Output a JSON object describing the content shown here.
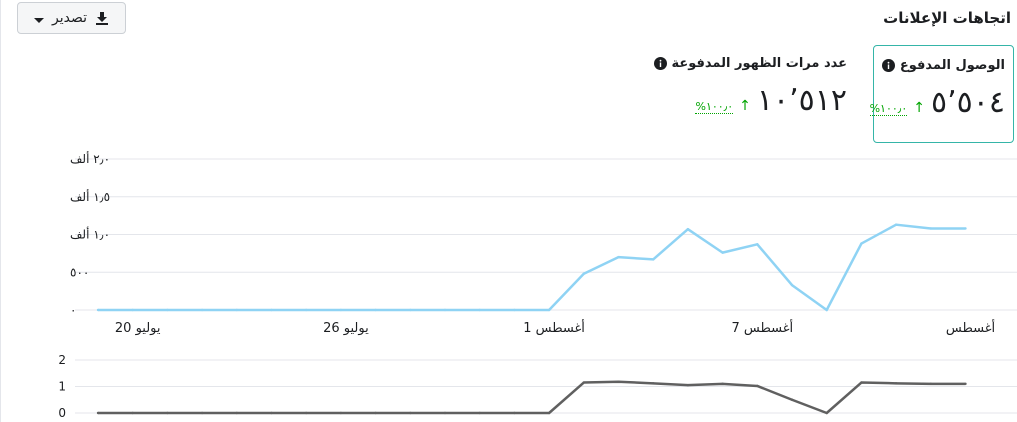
{
  "header": {
    "title": "اتجاهات الإعلانات",
    "export_label": "تصدير",
    "export_icon": "download-icon",
    "export_caret": "caret-down-icon"
  },
  "metrics": [
    {
      "label": "الوصول المدفوع",
      "value": "٥٬٥٠٤",
      "arrow": "↑",
      "change": "١٠٠٫٠%",
      "selected": true
    },
    {
      "label": "عدد مرات الظهور المدفوعة",
      "value": "١٠٬٥١٢",
      "arrow": "↑",
      "change": "١٠٠٫٠%",
      "selected": false
    }
  ],
  "colors": {
    "reach_line": "#8fd3f4",
    "secondary_line": "#606060",
    "accent": "#35b5a8",
    "positive": "#00a400"
  },
  "chart_data": [
    {
      "type": "line",
      "y_tick_labels": [
        "٠",
        "٥٠٠",
        "١٫٠ ألف",
        "١٫٥ ألف",
        "٢٫٠ ألف"
      ],
      "y_ticks": [
        0,
        500,
        1000,
        1500,
        2000
      ],
      "ylim": [
        0,
        2000
      ],
      "x_tick_labels": [
        "20 يوليو",
        "26 يوليو",
        "1 أغسطس",
        "7 أغسطس",
        "أغسطس"
      ],
      "x_tick_days": [
        1,
        7,
        13,
        19,
        25
      ],
      "grid": true,
      "series": [
        {
          "x": [
            0,
            1,
            2,
            3,
            4,
            5,
            6,
            7,
            8,
            9,
            10,
            11,
            12,
            13,
            14,
            15,
            16,
            17,
            18,
            19,
            20,
            21,
            22,
            23,
            24,
            25
          ],
          "values": [
            0,
            0,
            0,
            0,
            0,
            0,
            0,
            0,
            0,
            0,
            0,
            0,
            0,
            0,
            480,
            700,
            670,
            1070,
            760,
            870,
            330,
            0,
            880,
            1130,
            1080,
            1080
          ]
        }
      ]
    },
    {
      "type": "line",
      "y_tick_labels": [
        "0",
        "1",
        "2"
      ],
      "y_ticks": [
        0,
        1,
        2
      ],
      "ylim": [
        0,
        2
      ],
      "grid": true,
      "series": [
        {
          "x": [
            0,
            1,
            2,
            3,
            4,
            5,
            6,
            7,
            8,
            9,
            10,
            11,
            12,
            13,
            14,
            15,
            16,
            17,
            18,
            19,
            20,
            21,
            22,
            23,
            24,
            25
          ],
          "values": [
            0,
            0,
            0,
            0,
            0,
            0,
            0,
            0,
            0,
            0,
            0,
            0,
            0,
            0,
            1.15,
            1.18,
            1.12,
            1.05,
            1.1,
            1.02,
            0.5,
            0,
            1.15,
            1.12,
            1.1,
            1.1
          ]
        }
      ]
    }
  ]
}
